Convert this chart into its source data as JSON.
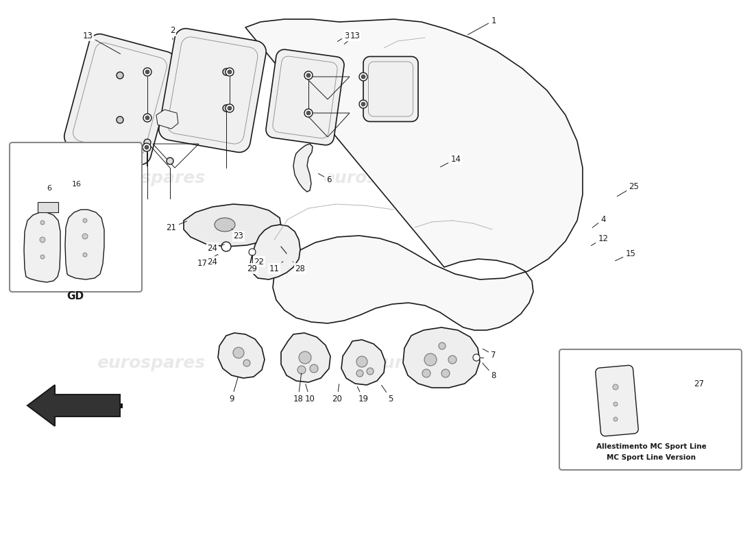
{
  "background_color": "#ffffff",
  "line_color": "#1a1a1a",
  "watermark_color": "#c8c8c8",
  "watermark_text": "eurospares",
  "callout_mc_text1": "Allestimento MC Sport Line",
  "callout_mc_text2": "MC Sport Line Version",
  "callout_gd_label": "GD",
  "fig_width": 11.0,
  "fig_height": 8.0
}
